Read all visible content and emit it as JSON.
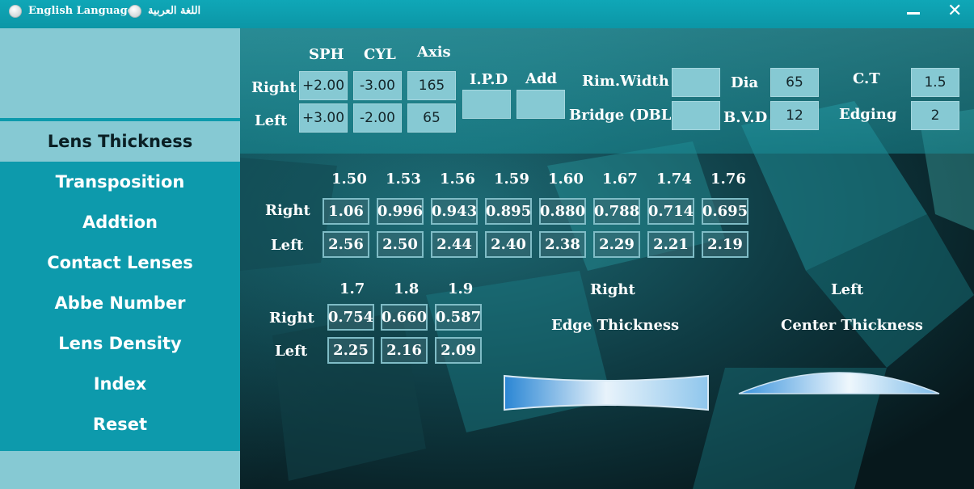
{
  "titlebar": {
    "lang_english": "English Language",
    "lang_arabic": "اللغة العربية"
  },
  "sidebar": {
    "items": [
      {
        "label": "Lens Thickness",
        "active": true
      },
      {
        "label": "Transposition"
      },
      {
        "label": "Addtion"
      },
      {
        "label": "Contact Lenses"
      },
      {
        "label": "Abbe Number"
      },
      {
        "label": "Lens Density"
      },
      {
        "label": "Index"
      },
      {
        "label": "Reset"
      }
    ]
  },
  "inputs": {
    "headers": {
      "sph": "SPH",
      "cyl": "CYL",
      "axis": "Axis",
      "ipd": "I.P.D",
      "add": "Add"
    },
    "row_labels": {
      "right": "Right",
      "left": "Left"
    },
    "right": {
      "sph": "+2.00",
      "cyl": "-3.00",
      "axis": "165"
    },
    "left": {
      "sph": "+3.00",
      "cyl": "-2.00",
      "axis": "65"
    },
    "ipd": "",
    "add": "",
    "rim_width_label": "Rim.Width",
    "rim_width": "",
    "bridge_label": "Bridge (DBL)",
    "bridge": "",
    "dia_label": "Dia",
    "dia": "65",
    "bvd_label": "B.V.D",
    "bvd": "12",
    "ct_label": "C.T",
    "ct": "1.5",
    "edging_label": "Edging",
    "edging": "2"
  },
  "results1": {
    "indices": [
      "1.50",
      "1.53",
      "1.56",
      "1.59",
      "1.60",
      "1.67",
      "1.74",
      "1.76"
    ],
    "row_labels": {
      "right": "Right",
      "left": "Left"
    },
    "right": [
      "1.06",
      "0.996",
      "0.943",
      "0.895",
      "0.880",
      "0.788",
      "0.714",
      "0.695"
    ],
    "left": [
      "2.56",
      "2.50",
      "2.44",
      "2.40",
      "2.38",
      "2.29",
      "2.21",
      "2.19"
    ]
  },
  "results2": {
    "indices": [
      "1.7",
      "1.8",
      "1.9"
    ],
    "row_labels": {
      "right": "Right",
      "left": "Left"
    },
    "right": [
      "0.754",
      "0.660",
      "0.587"
    ],
    "left": [
      "2.25",
      "2.16",
      "2.09"
    ]
  },
  "diagrams": {
    "right_title": "Right",
    "right_caption": "Edge Thickness",
    "left_title": "Left",
    "left_caption": "Center Thickness"
  },
  "colors": {
    "accent": "#0d9aac",
    "field": "#86c9d3",
    "active_menu": "#86c9d3"
  }
}
